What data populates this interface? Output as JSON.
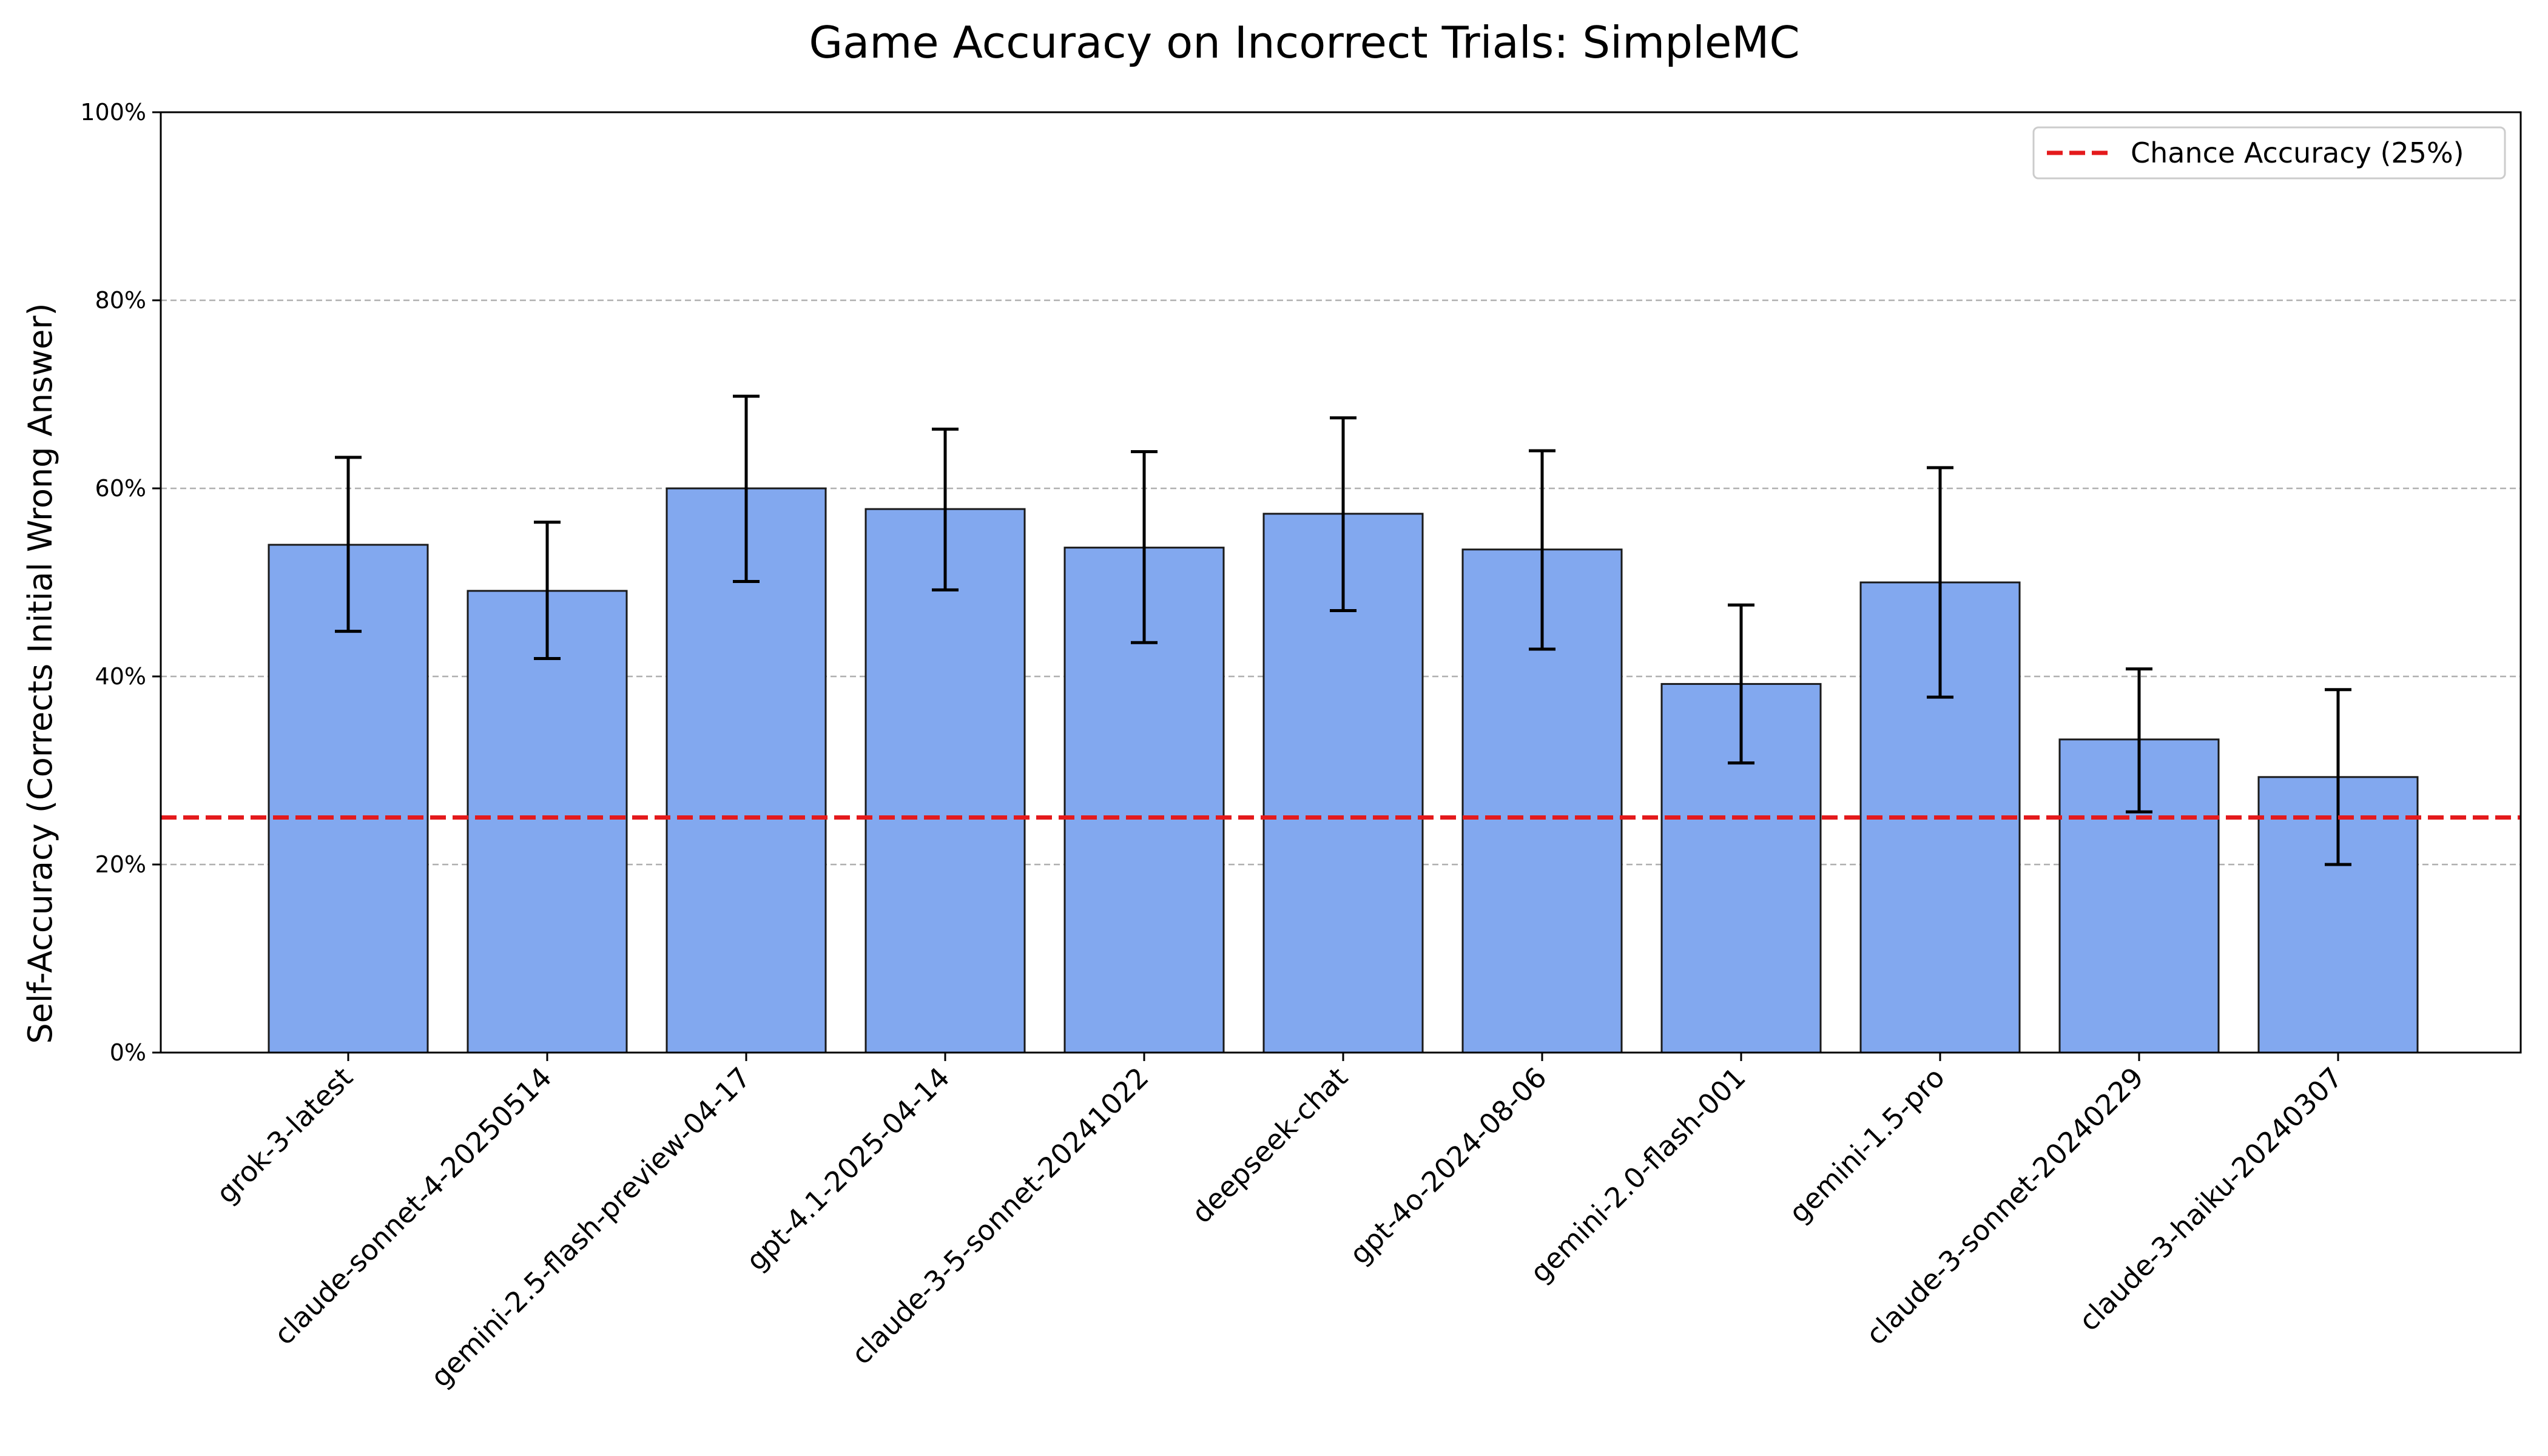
{
  "chart_data": {
    "type": "bar",
    "title": "Game Accuracy on Incorrect Trials: SimpleMC",
    "xlabel": "",
    "ylabel": "Self-Accuracy (Corrects Initial Wrong Answer)",
    "ylim": [
      0,
      100
    ],
    "yticks": [
      0,
      20,
      40,
      60,
      80,
      100
    ],
    "ytick_labels": [
      "0%",
      "20%",
      "40%",
      "60%",
      "80%",
      "100%"
    ],
    "grid": "y-dashed",
    "categories": [
      "grok-3-latest",
      "claude-sonnet-4-20250514",
      "gemini-2.5-flash-preview-04-17",
      "gpt-4.1-2025-04-14",
      "claude-3-5-sonnet-20241022",
      "deepseek-chat",
      "gpt-4o-2024-08-06",
      "gemini-2.0-flash-001",
      "gemini-1.5-pro",
      "claude-3-sonnet-20240229",
      "claude-3-haiku-20240307"
    ],
    "values": [
      54.0,
      49.1,
      60.0,
      57.8,
      53.7,
      57.3,
      53.5,
      39.2,
      50.0,
      33.3,
      29.3
    ],
    "error_low": [
      44.8,
      41.9,
      50.1,
      49.2,
      43.6,
      47.0,
      42.9,
      30.8,
      37.8,
      25.6,
      20.0
    ],
    "error_high": [
      63.3,
      56.4,
      69.8,
      66.3,
      63.9,
      67.5,
      64.0,
      47.6,
      62.2,
      40.8,
      38.6
    ],
    "reference_line": {
      "value": 25,
      "label": "Chance Accuracy (25%)",
      "color": "#e41a1c"
    },
    "legend_position": "top-right",
    "bar_color": "#82a8ef"
  }
}
